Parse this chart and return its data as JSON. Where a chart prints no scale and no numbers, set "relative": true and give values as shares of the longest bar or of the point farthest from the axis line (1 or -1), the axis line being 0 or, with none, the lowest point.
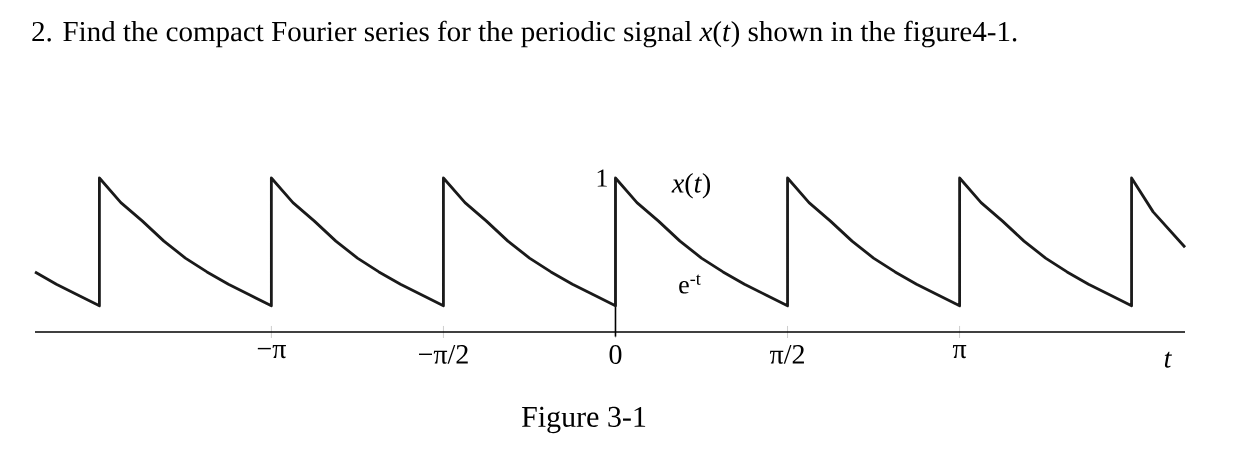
{
  "chart_data": {
    "type": "line",
    "relative": true,
    "title": "2.  Find the compact Fourier series for the periodic signal *x*(*t*) shown in the figure4-1.",
    "xlabel": "*t*",
    "ylabel": "*x*(*t*)",
    "color": "#1a1a1a",
    "x": [
      -5.3,
      -5.105,
      -4.909,
      -4.712,
      -4.712,
      -4.516,
      -4.319,
      -4.123,
      -3.927,
      -3.73,
      -3.534,
      -3.338,
      -3.142,
      -3.142,
      -2.945,
      -2.749,
      -2.553,
      -2.356,
      -2.16,
      -1.963,
      -1.767,
      -1.571,
      -1.571,
      -1.374,
      -1.178,
      -0.982,
      -0.785,
      -0.589,
      -0.393,
      -0.196,
      0,
      0,
      0.196,
      0.393,
      0.589,
      0.785,
      0.982,
      1.178,
      1.374,
      1.571,
      1.571,
      1.767,
      1.963,
      2.16,
      2.356,
      2.553,
      2.749,
      2.945,
      3.142,
      3.142,
      3.338,
      3.534,
      3.73,
      3.927,
      4.123,
      4.319,
      4.516,
      4.712,
      4.712,
      4.909,
      5.2
    ],
    "values": [
      0.39,
      0.31,
      0.24,
      0.17,
      1,
      0.84,
      0.72,
      0.59,
      0.48,
      0.39,
      0.31,
      0.24,
      0.17,
      1,
      0.84,
      0.72,
      0.59,
      0.48,
      0.39,
      0.31,
      0.24,
      0.17,
      1,
      0.84,
      0.72,
      0.59,
      0.48,
      0.39,
      0.31,
      0.24,
      0.17,
      1,
      0.84,
      0.72,
      0.59,
      0.48,
      0.39,
      0.31,
      0.24,
      0.17,
      1,
      0.84,
      0.72,
      0.59,
      0.48,
      0.39,
      0.31,
      0.24,
      0.17,
      1,
      0.84,
      0.72,
      0.59,
      0.48,
      0.39,
      0.31,
      0.24,
      0.17,
      1,
      0.78,
      0.55
    ],
    "xlim": [
      -5.3,
      5.2
    ],
    "xticks": [
      {
        "value": -3.1416,
        "label": "−π"
      },
      {
        "value": -1.5708,
        "label": "−π/2"
      },
      {
        "value": 0,
        "label": "0"
      },
      {
        "value": 1.5708,
        "label": "π/2"
      },
      {
        "value": 3.1416,
        "label": "π"
      }
    ],
    "annotations": [
      {
        "text": "1",
        "x": 0,
        "y": 1
      },
      "e$^{-t}$",
      "Figure 3-1"
    ]
  }
}
